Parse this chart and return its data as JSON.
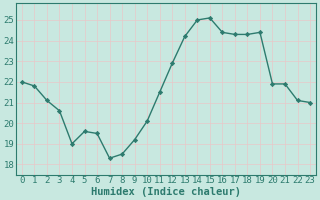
{
  "x": [
    0,
    1,
    2,
    3,
    4,
    5,
    6,
    7,
    8,
    9,
    10,
    11,
    12,
    13,
    14,
    15,
    16,
    17,
    18,
    19,
    20,
    21,
    22,
    23
  ],
  "y": [
    22.0,
    21.8,
    21.1,
    20.6,
    19.0,
    19.6,
    19.5,
    18.3,
    18.5,
    19.2,
    20.1,
    21.5,
    22.9,
    24.2,
    25.0,
    25.1,
    24.4,
    24.3,
    24.3,
    24.4,
    21.9,
    21.9,
    21.1,
    21.0
  ],
  "line_color": "#2d7b6e",
  "marker": "D",
  "marker_size": 2.2,
  "linewidth": 1.0,
  "xlabel": "Humidex (Indice chaleur)",
  "xlim": [
    -0.5,
    23.5
  ],
  "ylim": [
    17.5,
    25.8
  ],
  "yticks": [
    18,
    19,
    20,
    21,
    22,
    23,
    24,
    25
  ],
  "xticks": [
    0,
    1,
    2,
    3,
    4,
    5,
    6,
    7,
    8,
    9,
    10,
    11,
    12,
    13,
    14,
    15,
    16,
    17,
    18,
    19,
    20,
    21,
    22,
    23
  ],
  "xtick_labels": [
    "0",
    "1",
    "2",
    "3",
    "4",
    "5",
    "6",
    "7",
    "8",
    "9",
    "10",
    "11",
    "12",
    "13",
    "14",
    "15",
    "16",
    "17",
    "18",
    "19",
    "20",
    "21",
    "22",
    "23"
  ],
  "bg_color": "#c8e8e0",
  "grid_color": "#e8c8c8",
  "grid_linewidth": 0.5,
  "tick_color": "#2d7b6e",
  "tick_fontsize": 6.5,
  "xlabel_fontsize": 7.5,
  "xlabel_fontweight": "bold"
}
